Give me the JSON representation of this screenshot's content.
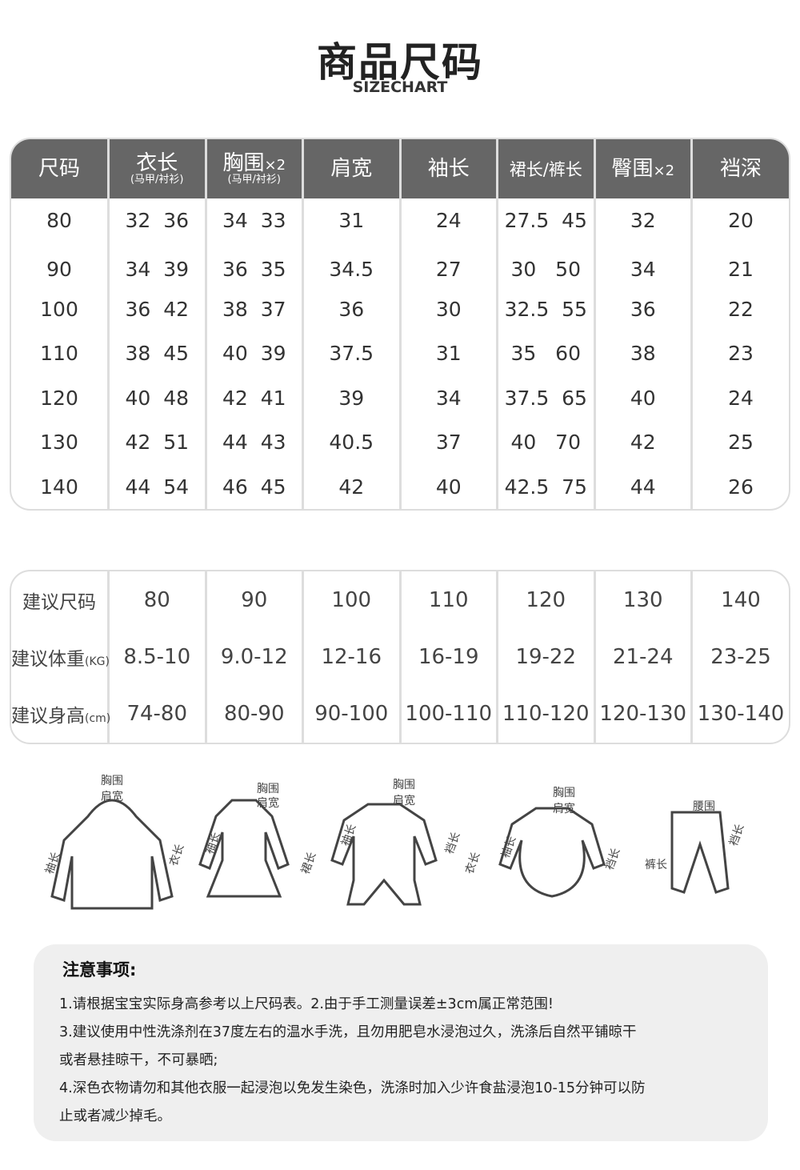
{
  "title": "商品尺码",
  "subtitle": "SIZECHART",
  "size_table": {
    "headers": [
      {
        "label": "尺码",
        "sub": "",
        "mult": ""
      },
      {
        "label": "衣长",
        "sub": "(马甲/衬衫)",
        "mult": ""
      },
      {
        "label": "胸围",
        "sub": "(马甲/衬衫)",
        "mult": "×2"
      },
      {
        "label": "肩宽",
        "sub": "",
        "mult": ""
      },
      {
        "label": "袖长",
        "sub": "",
        "mult": ""
      },
      {
        "label": "裙长/裤长",
        "sub": "",
        "mult": ""
      },
      {
        "label": "臀围",
        "sub": "",
        "mult": "×2"
      },
      {
        "label": "裆深",
        "sub": "",
        "mult": ""
      }
    ],
    "rows": [
      [
        "80",
        "32  36",
        "34  33",
        "31",
        "24",
        "27.5  45",
        "32",
        "20"
      ],
      [
        "90",
        "34  39",
        "36  35",
        "34.5",
        "27",
        "30   50",
        "34",
        "21"
      ],
      [
        "100",
        "36  42",
        "38  37",
        "36",
        "30",
        "32.5  55",
        "36",
        "22"
      ],
      [
        "110",
        "38  45",
        "40  39",
        "37.5",
        "31",
        "35   60",
        "38",
        "23"
      ],
      [
        "120",
        "40  48",
        "42  41",
        "39",
        "34",
        "37.5  65",
        "40",
        "24"
      ],
      [
        "130",
        "42  51",
        "44  43",
        "40.5",
        "37",
        "40   70",
        "42",
        "25"
      ],
      [
        "140",
        "44  54",
        "46  45",
        "42",
        "40",
        "42.5  75",
        "44",
        "26"
      ]
    ]
  },
  "recommend_table": {
    "rows": [
      {
        "label": "建议尺码",
        "unit": "",
        "values": [
          "80",
          "90",
          "100",
          "110",
          "120",
          "130",
          "140"
        ]
      },
      {
        "label": "建议体重",
        "unit": "(KG)",
        "values": [
          "8.5-10",
          "9.0-12",
          "12-16",
          "16-19",
          "19-22",
          "21-24",
          "23-25"
        ]
      },
      {
        "label": "建议身高",
        "unit": "(cm)",
        "values": [
          "74-80",
          "80-90",
          "90-100",
          "100-110",
          "110-120",
          "120-130",
          "130-140"
        ]
      }
    ]
  },
  "diagrams": [
    {
      "name": "jacket",
      "labels": [
        "胸围",
        "肩宽",
        "袖长",
        "衣长"
      ]
    },
    {
      "name": "dress",
      "labels": [
        "胸围",
        "肩宽",
        "袖长",
        "裙长"
      ]
    },
    {
      "name": "romper",
      "labels": [
        "胸围",
        "肩宽",
        "袖长",
        "裆长",
        "衣长"
      ]
    },
    {
      "name": "bodysuit",
      "labels": [
        "胸围",
        "肩宽",
        "袖长",
        "裆长"
      ]
    },
    {
      "name": "pants",
      "labels": [
        "腰围",
        "裤长",
        "裆长"
      ]
    }
  ],
  "notes": {
    "title": "注意事项:",
    "lines": [
      "1.请根据宝宝实际身高参考以上尺码表。2.由于手工测量误差±3cm属正常范围!",
      "3.建议使用中性洗涤剂在37度左右的温水手洗，且勿用肥皂水浸泡过久，洗涤后自然平铺晾干",
      "或者悬挂晾干，不可暴晒;",
      "4.深色衣物请勿和其他衣服一起浸泡以免发生染色，洗涤时加入少许食盐浸泡10-15分钟可以防",
      "止或者减少掉毛。"
    ]
  },
  "colors": {
    "header_bg": "#666666",
    "border": "#dddddd",
    "notes_bg": "#efefef"
  }
}
